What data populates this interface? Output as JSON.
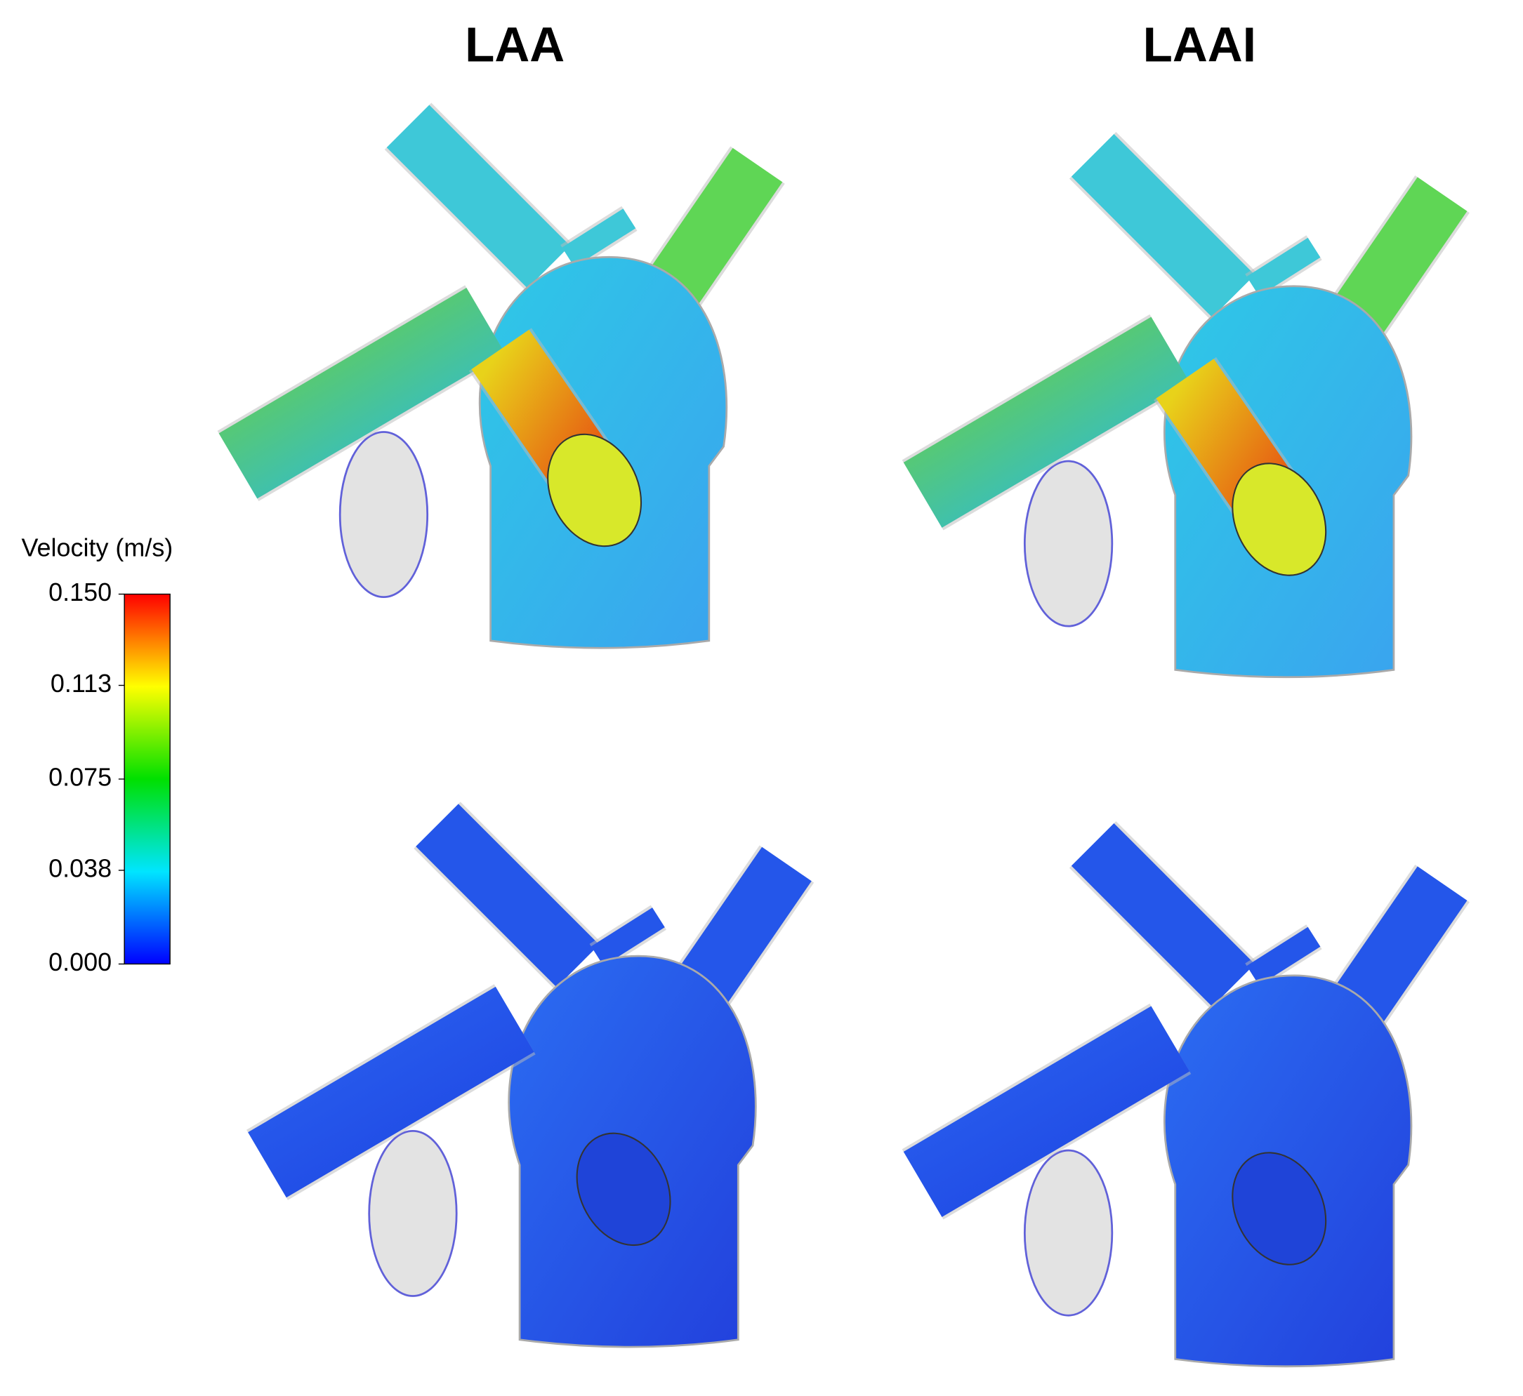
{
  "columns": [
    {
      "title": "LAA"
    },
    {
      "title": "LAAI"
    }
  ],
  "colorbar": {
    "label": "Velocity (m/s)",
    "range": [
      0,
      0.15
    ],
    "ticks": [
      {
        "value": 0.15,
        "label": "0.150"
      },
      {
        "value": 0.113,
        "label": "0.113"
      },
      {
        "value": 0.075,
        "label": "0.075"
      },
      {
        "value": 0.038,
        "label": "0.038"
      },
      {
        "value": 0,
        "label": "0.000"
      }
    ],
    "colors": [
      "#0000ff",
      "#00e5ff",
      "#00e000",
      "#ffff00",
      "#ff0000"
    ]
  }
}
